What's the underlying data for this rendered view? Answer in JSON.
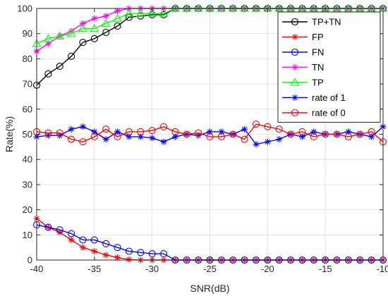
{
  "chart_data": {
    "type": "line",
    "title": "",
    "xlabel": "SNR(dB)",
    "ylabel": "Rate(%)",
    "xlim": [
      -40,
      -10
    ],
    "ylim": [
      0,
      100
    ],
    "xticks": [
      -40,
      -35,
      -30,
      -25,
      -20,
      -15,
      -10
    ],
    "yticks": [
      0,
      10,
      20,
      30,
      40,
      50,
      60,
      70,
      80,
      90,
      100
    ],
    "xtick_labels": [
      "-40",
      "-35",
      "-30",
      "-25",
      "-20",
      "-15",
      "-10"
    ],
    "ytick_labels": [
      "0",
      "10",
      "20",
      "30",
      "40",
      "50",
      "60",
      "70",
      "80",
      "90",
      "100"
    ],
    "grid": true,
    "legend_position": "top-right",
    "x": [
      -40,
      -39,
      -38,
      -37,
      -36,
      -35,
      -34,
      -33,
      -32,
      -31,
      -30,
      -29,
      -28,
      -27,
      -26,
      -25,
      -24,
      -23,
      -22,
      -21,
      -20,
      -19,
      -18,
      -17,
      -16,
      -15,
      -14,
      -13,
      -12,
      -11,
      -10
    ],
    "series": [
      {
        "name": "TP+TN",
        "color": "#000000",
        "marker": "circle",
        "values": [
          69.5,
          74,
          77,
          81,
          86.5,
          88,
          90.5,
          93,
          96.5,
          97,
          97.5,
          97.5,
          100,
          100,
          100,
          100,
          100,
          100,
          100,
          100,
          100,
          100,
          100,
          100,
          100,
          100,
          100,
          100,
          100,
          100,
          100
        ]
      },
      {
        "name": "FP",
        "color": "#ff0000",
        "marker": "star",
        "values": [
          16.5,
          13,
          11,
          8,
          5,
          3.5,
          2,
          1,
          0.2,
          0,
          0,
          0,
          0,
          0,
          0,
          0,
          0,
          0,
          0,
          0,
          0,
          0,
          0,
          0,
          0,
          0,
          0,
          0,
          0,
          0,
          0
        ]
      },
      {
        "name": "FN",
        "color": "#0000ff",
        "marker": "circle",
        "values": [
          14,
          13,
          12,
          10.5,
          8,
          8,
          6.5,
          5,
          3.5,
          3,
          2.5,
          2.5,
          0,
          0,
          0,
          0,
          0,
          0,
          0,
          0,
          0,
          0,
          0,
          0,
          0,
          0,
          0,
          0,
          0,
          0,
          0
        ]
      },
      {
        "name": "TN",
        "color": "#ff00ff",
        "marker": "star",
        "values": [
          83,
          86,
          89,
          91,
          94,
          96,
          97,
          99,
          100,
          100,
          100,
          100,
          100,
          100,
          100,
          100,
          100,
          100,
          100,
          100,
          100,
          100,
          100,
          100,
          100,
          100,
          100,
          100,
          100,
          100,
          100
        ]
      },
      {
        "name": "TP",
        "color": "#00ff00",
        "marker": "triangle",
        "values": [
          86,
          88,
          89,
          90,
          92,
          92,
          94,
          96,
          98,
          98,
          98,
          98,
          100,
          100,
          100,
          100,
          100,
          100,
          100,
          100,
          100,
          100,
          100,
          100,
          100,
          100,
          100,
          100,
          100,
          100,
          100
        ]
      },
      {
        "name": "rate of 1",
        "color": "#0000ff",
        "marker": "star",
        "values": [
          49,
          49.5,
          49.5,
          52,
          53,
          51,
          48,
          51,
          49,
          49,
          48.5,
          47,
          49,
          50,
          49.5,
          51,
          51,
          50,
          52,
          46,
          47,
          48,
          50,
          49,
          51,
          50,
          50,
          51,
          50,
          49,
          53
        ]
      },
      {
        "name": "rate of 0",
        "color": "#ff0000",
        "marker": "circle",
        "values": [
          51,
          50.5,
          50.5,
          48,
          47,
          49,
          52,
          49,
          51,
          51,
          51.5,
          53,
          51,
          50,
          50.5,
          49,
          49,
          50,
          48,
          54,
          53,
          52,
          50,
          51,
          49,
          50,
          50,
          49,
          50,
          51,
          47
        ]
      }
    ]
  }
}
